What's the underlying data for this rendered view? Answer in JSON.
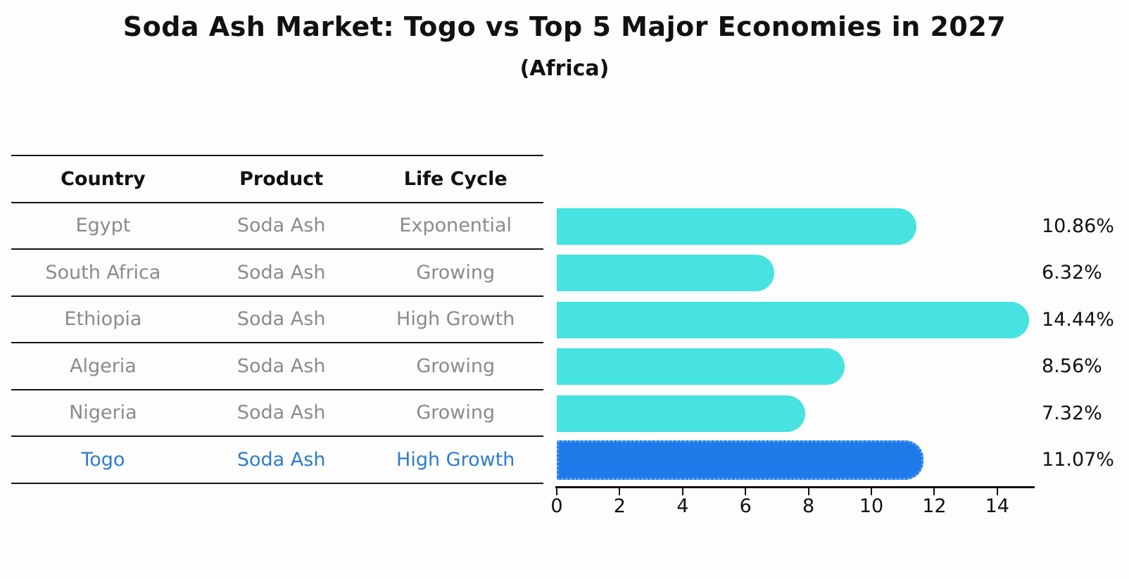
{
  "chart_data": {
    "type": "bar",
    "orientation": "horizontal",
    "title": "Soda Ash Market: Togo vs Top 5 Major Economies in 2027",
    "subtitle": "(Africa)",
    "categories": [
      "Egypt",
      "South Africa",
      "Ethiopia",
      "Algeria",
      "Nigeria",
      "Togo"
    ],
    "values": [
      10.86,
      6.32,
      14.44,
      8.56,
      7.32,
      11.07
    ],
    "value_labels": [
      "10.86%",
      "6.32%",
      "14.44%",
      "8.56%",
      "7.32%",
      "11.07%"
    ],
    "x_ticks": [
      0,
      2,
      4,
      6,
      8,
      10,
      12,
      14
    ],
    "xlim": [
      0,
      15.2
    ],
    "ylabel": "",
    "xlabel": "",
    "grid": false,
    "legend": "none",
    "bar_color": "#46e3e0",
    "highlight_bar_color": "#1e7ae8",
    "highlight_index": 5
  },
  "table": {
    "headers": [
      "Country",
      "Product",
      "Life Cycle"
    ],
    "rows": [
      {
        "country": "Egypt",
        "product": "Soda Ash",
        "life_cycle": "Exponential",
        "highlight": false
      },
      {
        "country": "South Africa",
        "product": "Soda Ash",
        "life_cycle": "Growing",
        "highlight": false
      },
      {
        "country": "Ethiopia",
        "product": "Soda Ash",
        "life_cycle": "High Growth",
        "highlight": false
      },
      {
        "country": "Algeria",
        "product": "Soda Ash",
        "life_cycle": "Growing",
        "highlight": false
      },
      {
        "country": "Nigeria",
        "product": "Soda Ash",
        "life_cycle": "Growing",
        "highlight": false
      },
      {
        "country": "Togo",
        "product": "Soda Ash",
        "life_cycle": "High Growth",
        "highlight": true
      }
    ]
  },
  "colors": {
    "muted_text": "#8b8b8b",
    "highlight_text": "#2d7ccc",
    "axis": "#111111"
  }
}
